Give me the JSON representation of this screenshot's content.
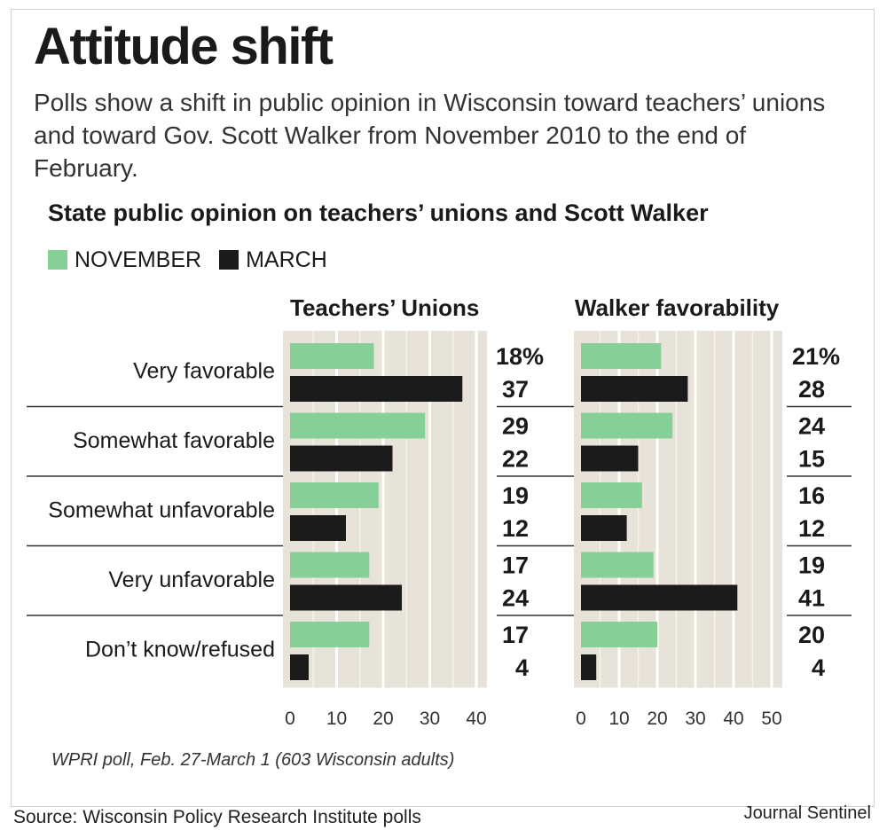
{
  "headline": "Attitude shift",
  "dek": "Polls show a shift in public opinion in Wisconsin toward teachers’ unions and toward Gov. Scott Walker from November 2010 to the end of February.",
  "chart_title": "State public opinion on teachers’ unions and Scott Walker",
  "legend": [
    {
      "label": "NOVEMBER",
      "color": "#86cf97"
    },
    {
      "label": "MARCH",
      "color": "#1b1b1b"
    }
  ],
  "note": "WPRI poll, Feb. 27-March 1 (603 Wisconsin adults)",
  "source": "Source: Wisconsin Policy Research Institute polls",
  "credit": "Journal Sentinel",
  "colors": {
    "panel_bg": "#e8e3d8",
    "grid": "#ffffff",
    "november": "#86cf97",
    "march": "#1b1b1b",
    "rule": "#333333"
  },
  "chart_data": [
    {
      "type": "bar",
      "orientation": "horizontal",
      "title": "Teachers’ Unions",
      "categories": [
        "Very favorable",
        "Somewhat favorable",
        "Somewhat unfavorable",
        "Very unfavorable",
        "Don’t know/refused"
      ],
      "series": [
        {
          "name": "NOVEMBER",
          "values": [
            18,
            29,
            19,
            17,
            17
          ]
        },
        {
          "name": "MARCH",
          "values": [
            37,
            22,
            12,
            24,
            4
          ]
        }
      ],
      "value_labels": [
        [
          "18%",
          "37"
        ],
        [
          "29",
          "22"
        ],
        [
          "19",
          "12"
        ],
        [
          "17",
          "24"
        ],
        [
          "17",
          "4"
        ]
      ],
      "xlim": [
        0,
        40
      ],
      "xticks": [
        0,
        10,
        20,
        30,
        40
      ],
      "unit": "%",
      "grid": true
    },
    {
      "type": "bar",
      "orientation": "horizontal",
      "title": "Walker favorability",
      "categories": [
        "Very favorable",
        "Somewhat favorable",
        "Somewhat unfavorable",
        "Very unfavorable",
        "Don’t know/refused"
      ],
      "series": [
        {
          "name": "NOVEMBER",
          "values": [
            21,
            24,
            16,
            19,
            20
          ]
        },
        {
          "name": "MARCH",
          "values": [
            28,
            15,
            12,
            41,
            4
          ]
        }
      ],
      "value_labels": [
        [
          "21%",
          "28"
        ],
        [
          "24",
          "15"
        ],
        [
          "16",
          "12"
        ],
        [
          "19",
          "41"
        ],
        [
          "20",
          "4"
        ]
      ],
      "xlim": [
        0,
        50
      ],
      "xticks": [
        0,
        10,
        20,
        30,
        40,
        50
      ],
      "unit": "%",
      "grid": true
    }
  ]
}
